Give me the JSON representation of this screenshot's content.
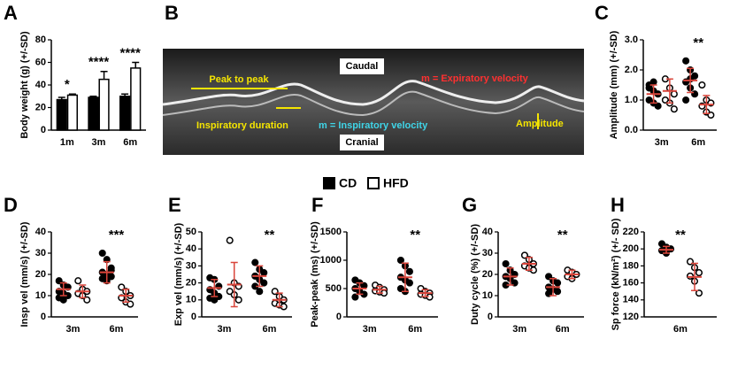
{
  "legend": [
    {
      "name": "CD",
      "color": "#000000"
    },
    {
      "name": "HFD",
      "color": "#ffffff"
    }
  ],
  "image_panel": {
    "panel": "B",
    "labels": [
      "Caudal",
      "Cranial",
      "Peak to peak",
      "m = Expiratory velocity",
      "Inspiratory duration",
      "m = Inspiratory velocity",
      "Amplitude"
    ]
  },
  "chart_data": [
    {
      "type": "bar",
      "panel": "A",
      "ylabel": "Body weight (g) (+/-SD)",
      "categories": [
        "1m",
        "3m",
        "6m"
      ],
      "series": [
        {
          "color": "#000000",
          "values": [
            27,
            29,
            30
          ],
          "errors": [
            2,
            1,
            2
          ]
        },
        {
          "color": "#ffffff",
          "values": [
            31,
            45,
            55
          ],
          "errors": [
            1,
            7,
            5
          ]
        }
      ],
      "ylim": [
        0,
        80
      ],
      "yticks": [
        0,
        20,
        40,
        60,
        80
      ],
      "annotations": [
        {
          "text": "*",
          "category": "1m"
        },
        {
          "text": "****",
          "category": "3m"
        },
        {
          "text": "****",
          "category": "6m"
        }
      ]
    },
    {
      "type": "scatter",
      "panel": "C",
      "ylabel": "Amplitude (mm) (+/-SD)",
      "categories": [
        "3m",
        "6m"
      ],
      "series": [
        {
          "color": "#000000",
          "values": [
            [
              1.5,
              1.3,
              1.2,
              1.0,
              0.9,
              0.8,
              1.4,
              1.6
            ],
            [
              2.3,
              2.0,
              1.8,
              1.6,
              1.4,
              1.2,
              1.0,
              1.7
            ]
          ],
          "mean": [
            1.2,
            1.65
          ],
          "sd": [
            0.3,
            0.4
          ]
        },
        {
          "color": "#ffffff",
          "values": [
            [
              1.7,
              1.4,
              1.2,
              1.0,
              0.9,
              0.7
            ],
            [
              1.5,
              1.0,
              0.9,
              0.8,
              0.6,
              0.5
            ]
          ],
          "mean": [
            1.3,
            0.85
          ],
          "sd": [
            0.4,
            0.3
          ]
        }
      ],
      "ylim": [
        0,
        3
      ],
      "yticks": [
        {
          "value": 0,
          "label": "0.0"
        },
        {
          "value": 1,
          "label": "1.0"
        },
        {
          "value": 2,
          "label": "2.0"
        },
        {
          "value": 3,
          "label": "3.0"
        }
      ],
      "annotations": [
        {
          "text": "**",
          "category": "6m"
        }
      ]
    },
    {
      "type": "scatter",
      "panel": "D",
      "ylabel": "Insp vel (mm/s) (+/-SD)",
      "categories": [
        "3m",
        "6m"
      ],
      "series": [
        {
          "color": "#000000",
          "values": [
            [
              17,
              15,
              14,
              12,
              11,
              10,
              9,
              8
            ],
            [
              30,
              27,
              23,
              21,
              20,
              19,
              18,
              17,
              22
            ]
          ],
          "mean": [
            13,
            21
          ],
          "sd": [
            3,
            5
          ]
        },
        {
          "color": "#ffffff",
          "values": [
            [
              17,
              13,
              12,
              11,
              10,
              8
            ],
            [
              14,
              12,
              10,
              9,
              7,
              6
            ]
          ],
          "mean": [
            12,
            10
          ],
          "sd": [
            3,
            3
          ]
        }
      ],
      "ylim": [
        0,
        40
      ],
      "yticks": [
        0,
        10,
        20,
        30,
        40
      ],
      "annotations": [
        {
          "text": "***",
          "category": "6m"
        }
      ]
    },
    {
      "type": "scatter",
      "panel": "E",
      "ylabel": "Exp vel (mm/s) (+/-SD)",
      "categories": [
        "3m",
        "6m"
      ],
      "series": [
        {
          "color": "#000000",
          "values": [
            [
              23,
              22,
              18,
              16,
              14,
              12,
              11,
              10
            ],
            [
              32,
              28,
              26,
              24,
              22,
              20,
              18,
              15
            ]
          ],
          "mean": [
            17,
            24
          ],
          "sd": [
            5,
            6
          ]
        },
        {
          "color": "#ffffff",
          "values": [
            [
              45,
              20,
              18,
              15,
              13,
              10
            ],
            [
              15,
              12,
              10,
              8,
              7,
              6
            ]
          ],
          "mean": [
            19,
            10
          ],
          "sd": [
            13,
            4
          ]
        }
      ],
      "ylim": [
        0,
        50
      ],
      "yticks": [
        0,
        10,
        20,
        30,
        40,
        50
      ],
      "annotations": [
        {
          "text": "**",
          "category": "6m"
        }
      ]
    },
    {
      "type": "scatter",
      "panel": "F",
      "ylabel": "Peak-peak  (ms) (+/-SD)",
      "categories": [
        "3m",
        "6m"
      ],
      "series": [
        {
          "color": "#000000",
          "values": [
            [
              650,
              600,
              550,
              500,
              450,
              400,
              350
            ],
            [
              1000,
              900,
              800,
              700,
              650,
              600,
              500,
              450
            ]
          ],
          "mean": [
            500,
            700
          ],
          "sd": [
            100,
            250
          ]
        },
        {
          "color": "#ffffff",
          "values": [
            [
              560,
              520,
              480,
              460,
              440,
              420
            ],
            [
              500,
              450,
              420,
              400,
              380,
              350
            ]
          ],
          "mean": [
            480,
            420
          ],
          "sd": [
            60,
            60
          ]
        }
      ],
      "ylim": [
        0,
        1500
      ],
      "yticks": [
        0,
        500,
        1000,
        1500
      ],
      "annotations": [
        {
          "text": "**",
          "category": "6m"
        }
      ]
    },
    {
      "type": "scatter",
      "panel": "G",
      "ylabel": "Duty cycle (%) (+/-SD)",
      "categories": [
        "3m",
        "6m"
      ],
      "series": [
        {
          "color": "#000000",
          "values": [
            [
              25,
              22,
              20,
              19,
              18,
              16,
              15
            ],
            [
              19,
              17,
              16,
              14,
              13,
              12,
              11
            ]
          ],
          "mean": [
            19,
            14
          ],
          "sd": [
            4,
            4
          ]
        },
        {
          "color": "#ffffff",
          "values": [
            [
              29,
              27,
              25,
              24,
              23,
              22
            ],
            [
              22,
              21,
              20,
              19,
              18
            ]
          ],
          "mean": [
            25,
            20
          ],
          "sd": [
            3,
            2
          ]
        }
      ],
      "ylim": [
        0,
        40
      ],
      "yticks": [
        0,
        10,
        20,
        30,
        40
      ],
      "annotations": [
        {
          "text": "**",
          "category": "6m"
        }
      ]
    },
    {
      "type": "scatter",
      "panel": "H",
      "ylabel": "Sp force (kN/m²) (+/- SD)",
      "categories": [
        "6m"
      ],
      "series": [
        {
          "color": "#000000",
          "values": [
            [
              206,
              202,
              200,
              198,
              195
            ]
          ],
          "mean": [
            199
          ],
          "sd": [
            4
          ]
        },
        {
          "color": "#ffffff",
          "values": [
            [
              185,
              178,
              172,
              168,
              162,
              148
            ]
          ],
          "mean": [
            167
          ],
          "sd": [
            16
          ]
        }
      ],
      "ylim": [
        120,
        220
      ],
      "yticks": [
        120,
        140,
        160,
        180,
        200,
        220
      ],
      "annotations": [
        {
          "text": "**",
          "category": "6m"
        }
      ]
    }
  ]
}
